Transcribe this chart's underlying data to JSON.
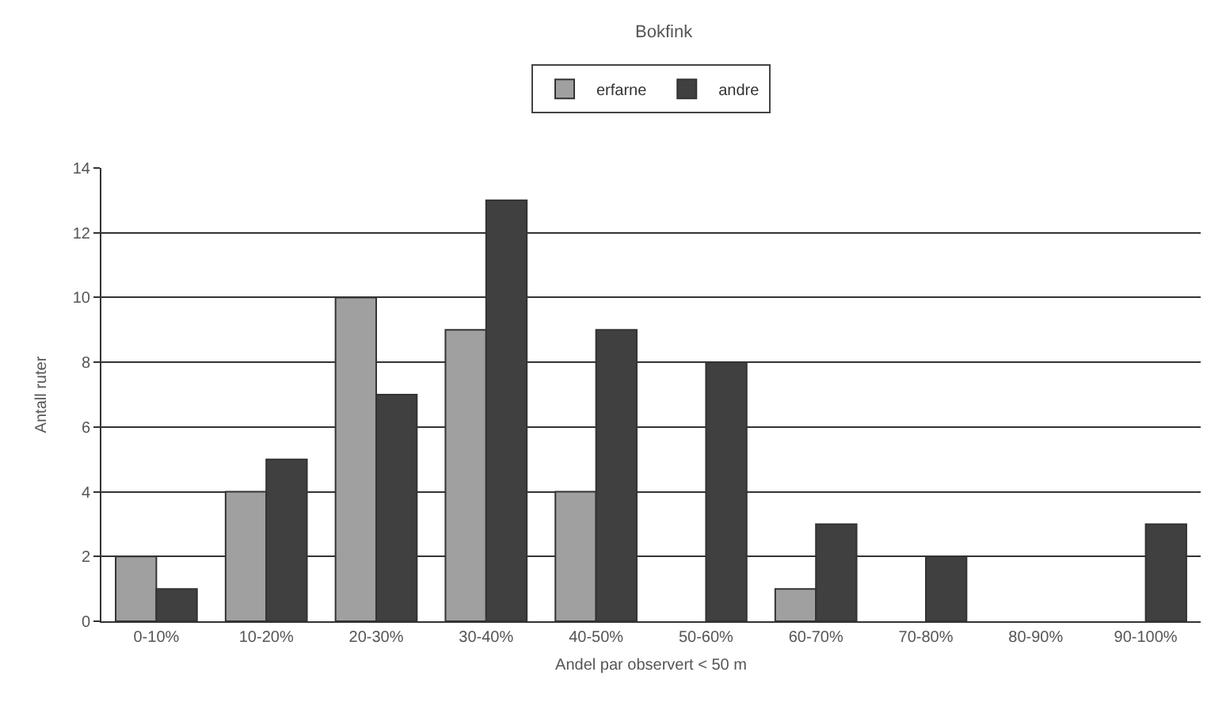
{
  "chart_data": {
    "type": "bar",
    "title": "Bokfink",
    "xlabel": "Andel par observert < 50 m",
    "ylabel": "Antall ruter",
    "categories": [
      "0-10%",
      "10-20%",
      "20-30%",
      "30-40%",
      "40-50%",
      "50-60%",
      "60-70%",
      "70-80%",
      "80-90%",
      "90-100%"
    ],
    "series": [
      {
        "name": "erfarne",
        "color": "#a0a0a0",
        "values": [
          2,
          4,
          10,
          9,
          4,
          0,
          1,
          0,
          0,
          0
        ]
      },
      {
        "name": "andre",
        "color": "#404040",
        "values": [
          1,
          5,
          7,
          13,
          9,
          8,
          3,
          2,
          0,
          3
        ]
      }
    ],
    "ylim": [
      0,
      14
    ],
    "yticks": [
      0,
      2,
      4,
      6,
      8,
      10,
      12,
      14
    ],
    "grid": "y",
    "legend": "top"
  }
}
